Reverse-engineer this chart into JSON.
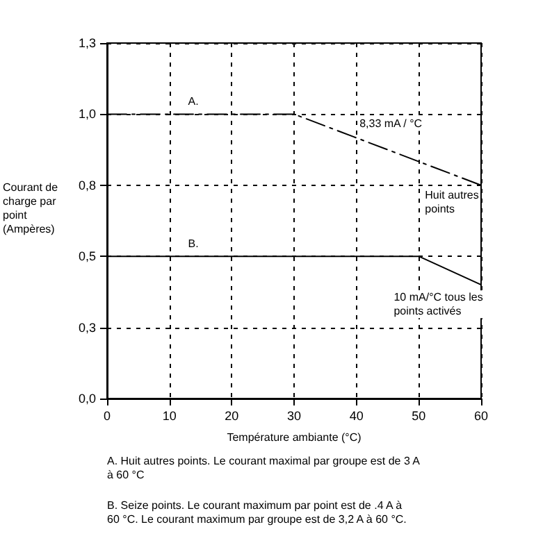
{
  "chart_data": {
    "type": "line",
    "xlabel": "Température ambiante (°C)",
    "ylabel": "Courant de charge par point (Ampères)",
    "series": [
      {
        "color": "#000000",
        "line_style": "dashed",
        "x": [
          0,
          30,
          60
        ],
        "values": [
          1.0,
          1.0,
          0.75
        ]
      },
      {
        "color": "#000000",
        "line_style": "solid",
        "x": [
          0,
          50,
          60
        ],
        "values": [
          0.5,
          0.5,
          0.4
        ]
      }
    ],
    "xlim": [
      0,
      60
    ],
    "xticks": [
      0,
      10,
      20,
      30,
      40,
      50,
      60
    ],
    "ylim": [
      0,
      1.25
    ],
    "yticks": [
      {
        "value": 0,
        "label": "0,0"
      },
      {
        "value": 0.25,
        "label": "0,3"
      },
      {
        "value": 0.5,
        "label": "0,5"
      },
      {
        "value": 0.75,
        "label": "0,8"
      },
      {
        "value": 1.0,
        "label": "1,0"
      },
      {
        "value": 1.25,
        "label": "1,3"
      }
    ],
    "grid": true,
    "marker": "none",
    "annotations": [
      "A.",
      "B.",
      "8,33 mA / °C",
      "Huit autres\npoints",
      "10 mA/°C tous les\npoints activés",
      "A. Huit autres points. Le courant maximal par groupe est de 3 A\nà 60 °C",
      "B. Seize points. Le courant maximum par point est de .4 A à\n60 °C. Le courant maximum par groupe est de 3,2 A à 60 °C."
    ]
  }
}
